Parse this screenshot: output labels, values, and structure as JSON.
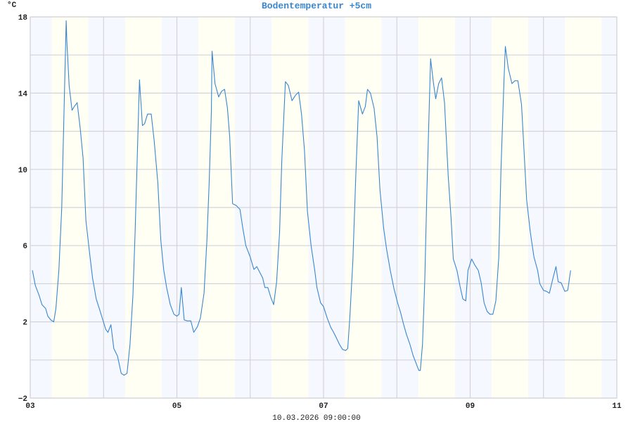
{
  "chart_data": {
    "type": "line",
    "title": "Bodentemperatur +5cm",
    "ylabel": "°C",
    "xlabel": "10.03.2026 09:00:00",
    "xlim": [
      3,
      11
    ],
    "ylim": [
      -2,
      18
    ],
    "x_ticks": [
      {
        "v": 3,
        "label": "03"
      },
      {
        "v": 5,
        "label": "05"
      },
      {
        "v": 7,
        "label": "07"
      },
      {
        "v": 9,
        "label": "09"
      },
      {
        "v": 11,
        "label": "11"
      }
    ],
    "y_ticks": [
      {
        "v": -2,
        "label": "−2"
      },
      {
        "v": 2,
        "label": "2"
      },
      {
        "v": 6,
        "label": "6"
      },
      {
        "v": 10,
        "label": "10"
      },
      {
        "v": 14,
        "label": "14"
      },
      {
        "v": 18,
        "label": "18"
      }
    ],
    "grid": true,
    "daylight_shading_hours": [
      7,
      19
    ],
    "colors": {
      "line": "#3a86d0",
      "night": "#f5f8fe",
      "day": "#fffff4",
      "grid": "#d4d4d8"
    },
    "series": [
      {
        "x": [
          3.03,
          3.07,
          3.12,
          3.16,
          3.21,
          3.24,
          3.28,
          3.32,
          3.35,
          3.39,
          3.43,
          3.46,
          3.49,
          3.5,
          3.53,
          3.57,
          3.6,
          3.64,
          3.68,
          3.72,
          3.76,
          3.81,
          3.85,
          3.9,
          3.95,
          3.99,
          4.03,
          4.06,
          4.1,
          4.14,
          4.19,
          4.24,
          4.28,
          4.32,
          4.36,
          4.4,
          4.43,
          4.49,
          4.53,
          4.56,
          4.6,
          4.65,
          4.69,
          4.74,
          4.78,
          4.82,
          4.86,
          4.91,
          4.96,
          5.0,
          5.03,
          5.06,
          5.1,
          5.14,
          5.19,
          5.23,
          5.28,
          5.32,
          5.37,
          5.41,
          5.44,
          5.47,
          5.48,
          5.52,
          5.57,
          5.61,
          5.65,
          5.69,
          5.72,
          5.76,
          5.81,
          5.86,
          5.9,
          5.94,
          6.0,
          6.05,
          6.09,
          6.13,
          6.17,
          6.2,
          6.24,
          6.28,
          6.32,
          6.36,
          6.4,
          6.43,
          6.48,
          6.52,
          6.57,
          6.62,
          6.66,
          6.7,
          6.74,
          6.78,
          6.83,
          6.88,
          6.91,
          6.96,
          7.0,
          7.05,
          7.1,
          7.13,
          7.17,
          7.22,
          7.26,
          7.3,
          7.33,
          7.36,
          7.4,
          7.44,
          7.48,
          7.53,
          7.57,
          7.6,
          7.64,
          7.69,
          7.73,
          7.77,
          7.82,
          7.86,
          7.91,
          7.96,
          8.01,
          8.05,
          8.09,
          8.13,
          8.18,
          8.22,
          8.27,
          8.3,
          8.32,
          8.35,
          8.38,
          8.41,
          8.46,
          8.5,
          8.53,
          8.57,
          8.61,
          8.65,
          8.7,
          8.74,
          8.77,
          8.82,
          8.86,
          8.9,
          8.94,
          8.97,
          9.02,
          9.06,
          9.11,
          9.15,
          9.19,
          9.23,
          9.27,
          9.31,
          9.35,
          9.39,
          9.42,
          9.46,
          9.48,
          9.52,
          9.57,
          9.61,
          9.65,
          9.7,
          9.73,
          9.77,
          9.82,
          9.87,
          9.92,
          9.95,
          10.0,
          10.04,
          10.08,
          10.13,
          10.17,
          10.2,
          10.24,
          10.29,
          10.33,
          10.37
        ],
        "y": [
          4.7,
          3.9,
          3.4,
          2.9,
          2.7,
          2.3,
          2.1,
          2.0,
          2.7,
          4.7,
          8.0,
          13.0,
          17.8,
          16.7,
          14.4,
          13.1,
          13.3,
          13.5,
          12.2,
          10.6,
          7.3,
          5.6,
          4.3,
          3.2,
          2.6,
          2.1,
          1.6,
          1.45,
          1.85,
          0.6,
          0.2,
          -0.7,
          -0.8,
          -0.7,
          0.8,
          3.4,
          6.7,
          14.7,
          12.3,
          12.4,
          12.9,
          12.9,
          11.5,
          9.3,
          6.3,
          4.75,
          3.8,
          2.9,
          2.4,
          2.3,
          2.4,
          3.8,
          2.1,
          2.05,
          2.05,
          1.45,
          1.75,
          2.2,
          3.5,
          6.3,
          9.3,
          13.0,
          16.2,
          14.5,
          13.8,
          14.1,
          14.2,
          13.2,
          11.7,
          8.2,
          8.1,
          7.9,
          6.9,
          6.0,
          5.4,
          4.75,
          4.9,
          4.6,
          4.3,
          3.8,
          3.8,
          3.3,
          2.9,
          4.1,
          6.7,
          10.4,
          14.6,
          14.4,
          13.6,
          13.9,
          14.05,
          12.9,
          11.0,
          7.8,
          6.0,
          4.7,
          3.8,
          3.0,
          2.8,
          2.2,
          1.7,
          1.5,
          1.2,
          0.8,
          0.55,
          0.5,
          0.6,
          2.3,
          5.2,
          9.7,
          13.6,
          12.9,
          13.3,
          14.2,
          14.0,
          13.2,
          11.7,
          8.9,
          6.9,
          5.8,
          4.7,
          3.75,
          3.0,
          2.5,
          1.9,
          1.35,
          0.8,
          0.25,
          -0.25,
          -0.55,
          -0.55,
          0.8,
          4.1,
          8.9,
          15.8,
          14.5,
          13.7,
          14.5,
          14.8,
          13.5,
          9.7,
          7.4,
          5.3,
          4.7,
          3.9,
          3.2,
          3.1,
          4.7,
          5.3,
          5.0,
          4.7,
          4.05,
          3.0,
          2.55,
          2.4,
          2.4,
          3.1,
          5.4,
          10.0,
          14.6,
          16.45,
          15.3,
          14.5,
          14.65,
          14.65,
          13.4,
          11.3,
          8.4,
          6.7,
          5.4,
          4.7,
          4.0,
          3.65,
          3.6,
          3.5,
          4.3,
          4.9,
          4.1,
          4.05,
          3.6,
          3.65,
          4.7
        ]
      }
    ]
  }
}
